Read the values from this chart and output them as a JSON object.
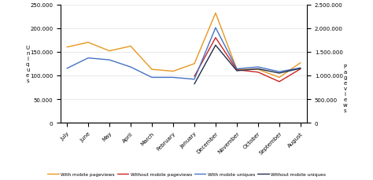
{
  "months": [
    "July",
    "June",
    "May",
    "April",
    "March",
    "February",
    "January",
    "December",
    "November",
    "October",
    "September",
    "August"
  ],
  "with_mobile_pageviews": [
    1600000,
    1700000,
    1520000,
    1620000,
    1130000,
    1090000,
    1250000,
    2320000,
    1130000,
    1130000,
    960000,
    1270000
  ],
  "without_mobile_pageviews": [
    null,
    null,
    null,
    null,
    null,
    null,
    980000,
    1800000,
    1120000,
    1070000,
    870000,
    1140000
  ],
  "with_mobile_uniques": [
    1150000,
    1370000,
    1330000,
    1180000,
    960000,
    960000,
    920000,
    2010000,
    1140000,
    1180000,
    1080000,
    1160000
  ],
  "without_mobile_uniques": [
    null,
    null,
    null,
    null,
    null,
    null,
    820000,
    1640000,
    1100000,
    1140000,
    1050000,
    1150000
  ],
  "colors": {
    "with_mobile_pageviews": "#E8971E",
    "without_mobile_pageviews": "#CC2222",
    "with_mobile_uniques": "#4472C4",
    "without_mobile_uniques": "#1F2D4A"
  },
  "right_ylim": [
    0,
    2500000
  ],
  "right_yticks": [
    0,
    500000,
    1000000,
    1500000,
    2000000,
    2500000
  ],
  "left_ylim": [
    0,
    250000
  ],
  "left_yticks": [
    0,
    50000,
    100000,
    150000,
    200000,
    250000
  ],
  "legend_labels": [
    "With mobile pageviews",
    "Without mobile pageviews",
    "With mobile uniques",
    "Without mobile uniques"
  ],
  "background_color": "#ffffff",
  "grid_color": "#E0E0E0"
}
